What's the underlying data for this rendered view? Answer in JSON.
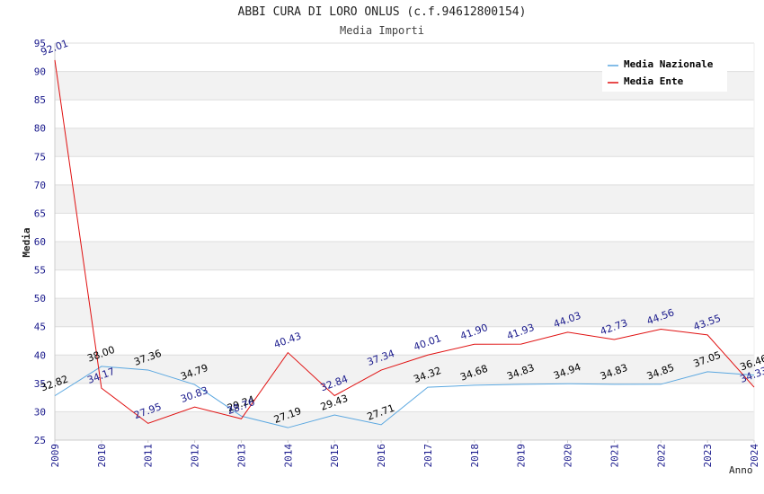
{
  "chart_data": {
    "type": "line",
    "title": "ABBI CURA DI LORO ONLUS (c.f.94612800154)",
    "subtitle": "Media Importi",
    "xlabel": "Anno",
    "ylabel": "Media",
    "ylim": [
      25,
      95
    ],
    "yticks": [
      "25",
      "30",
      "35",
      "40",
      "45",
      "50",
      "55",
      "60",
      "65",
      "70",
      "75",
      "80",
      "85",
      "90",
      "95"
    ],
    "categories": [
      "2009",
      "2010",
      "2011",
      "2012",
      "2013",
      "2014",
      "2015",
      "2016",
      "2017",
      "2018",
      "2019",
      "2020",
      "2021",
      "2022",
      "2023",
      "2024"
    ],
    "grid": true,
    "legend_position": "top-right",
    "series": [
      {
        "name": "Media Nazionale",
        "color": "#5aa7e0",
        "label_color": "#000000",
        "values": [
          32.82,
          38.0,
          37.36,
          34.79,
          29.24,
          27.19,
          29.43,
          27.71,
          34.32,
          34.68,
          34.83,
          34.94,
          34.83,
          34.85,
          37.05,
          36.46
        ],
        "labels": [
          "32.82",
          "38.00",
          "37.36",
          "34.79",
          "29.24",
          "27.19",
          "29.43",
          "27.71",
          "34.32",
          "34.68",
          "34.83",
          "34.94",
          "34.83",
          "34.85",
          "37.05",
          "36.46"
        ]
      },
      {
        "name": "Media Ente",
        "color": "#e01010",
        "label_color": "#1a1a8c",
        "values": [
          92.01,
          34.17,
          27.95,
          30.83,
          28.76,
          40.43,
          32.84,
          37.34,
          40.01,
          41.9,
          41.93,
          44.03,
          42.73,
          44.56,
          43.55,
          34.33
        ],
        "labels": [
          "92.01",
          "34.17",
          "27.95",
          "30.83",
          "28.76",
          "40.43",
          "32.84",
          "37.34",
          "40.01",
          "41.90",
          "41.93",
          "44.03",
          "42.73",
          "44.56",
          "43.55",
          "34.33"
        ]
      }
    ]
  }
}
